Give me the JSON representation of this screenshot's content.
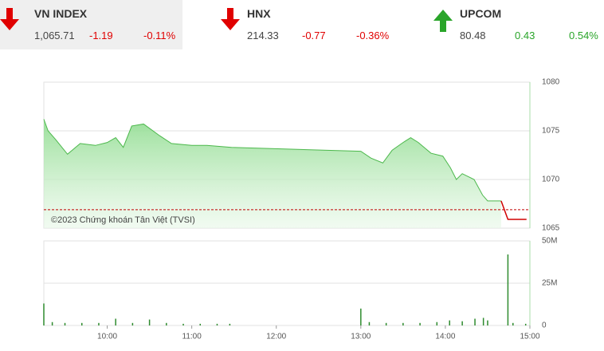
{
  "indices": [
    {
      "name": "VN INDEX",
      "value": "1,065.71",
      "change": "-1.19",
      "percent": "-0.11%",
      "direction": "down"
    },
    {
      "name": "HNX",
      "value": "214.33",
      "change": "-0.77",
      "percent": "-0.36%",
      "direction": "down"
    },
    {
      "name": "UPCOM",
      "value": "80.48",
      "change": "0.43",
      "percent": "0.54%",
      "direction": "up"
    }
  ],
  "chart_data": [
    {
      "type": "area",
      "annotation": "©2023 Chứng khoán Tân Việt (TVSI)",
      "xlim": [
        9.25,
        15
      ],
      "ylim": [
        1065,
        1080
      ],
      "yticks": [
        1065,
        1070,
        1075,
        1080
      ],
      "grid": true,
      "reference_line": 1066.9,
      "reference_color": "#c00000",
      "series": [
        {
          "color": "#4cb84c",
          "x": [
            9.25,
            9.3,
            9.39,
            9.53,
            9.68,
            9.86,
            10.0,
            10.1,
            10.19,
            10.29,
            10.43,
            10.62,
            10.76,
            11.0,
            11.18,
            11.47,
            13.0,
            13.12,
            13.26,
            13.37,
            13.5,
            13.59,
            13.68,
            13.83,
            13.97,
            14.06,
            14.13,
            14.2,
            14.34,
            14.44,
            14.5,
            14.66
          ],
          "values": [
            1076.2,
            1075.0,
            1074.1,
            1072.6,
            1073.7,
            1073.5,
            1073.8,
            1074.3,
            1073.3,
            1075.5,
            1075.7,
            1074.5,
            1073.7,
            1073.5,
            1073.5,
            1073.3,
            1072.9,
            1072.2,
            1071.7,
            1073.0,
            1073.8,
            1074.3,
            1073.8,
            1072.7,
            1072.4,
            1071.2,
            1070.0,
            1070.6,
            1070.0,
            1068.4,
            1067.8,
            1067.8
          ]
        },
        {
          "color": "#d00000",
          "x": [
            14.66,
            14.74,
            14.96
          ],
          "values": [
            1067.8,
            1065.9,
            1065.9
          ]
        }
      ]
    },
    {
      "type": "bar",
      "xlim": [
        9.25,
        15
      ],
      "ylim": [
        0,
        50000000
      ],
      "yticks": [
        0,
        {
          "value": 25000000,
          "label": "25M"
        },
        {
          "value": 50000000,
          "label": "50M"
        }
      ],
      "grid": true,
      "xticks": [
        {
          "value": 10,
          "label": "10:00"
        },
        {
          "value": 11,
          "label": "11:00"
        },
        {
          "value": 12,
          "label": "12:00"
        },
        {
          "value": 13,
          "label": "13:00"
        },
        {
          "value": 14,
          "label": "14:00"
        },
        {
          "value": 15,
          "label": "15:00"
        }
      ],
      "color": "#2e8b2e",
      "x": [
        9.25,
        9.35,
        9.5,
        9.7,
        9.9,
        10.1,
        10.3,
        10.5,
        10.7,
        10.9,
        11.1,
        11.3,
        11.45,
        13.0,
        13.1,
        13.3,
        13.5,
        13.7,
        13.9,
        14.05,
        14.2,
        14.35,
        14.45,
        14.5,
        14.74,
        14.8,
        14.95
      ],
      "values": [
        13000000,
        2000000,
        1500000,
        1500000,
        1500000,
        4000000,
        1500000,
        3500000,
        1500000,
        1000000,
        1000000,
        1000000,
        1000000,
        10000000,
        2000000,
        1500000,
        1500000,
        1500000,
        2000000,
        3000000,
        2500000,
        4000000,
        4500000,
        3000000,
        42000000,
        1500000,
        1000000
      ]
    }
  ]
}
